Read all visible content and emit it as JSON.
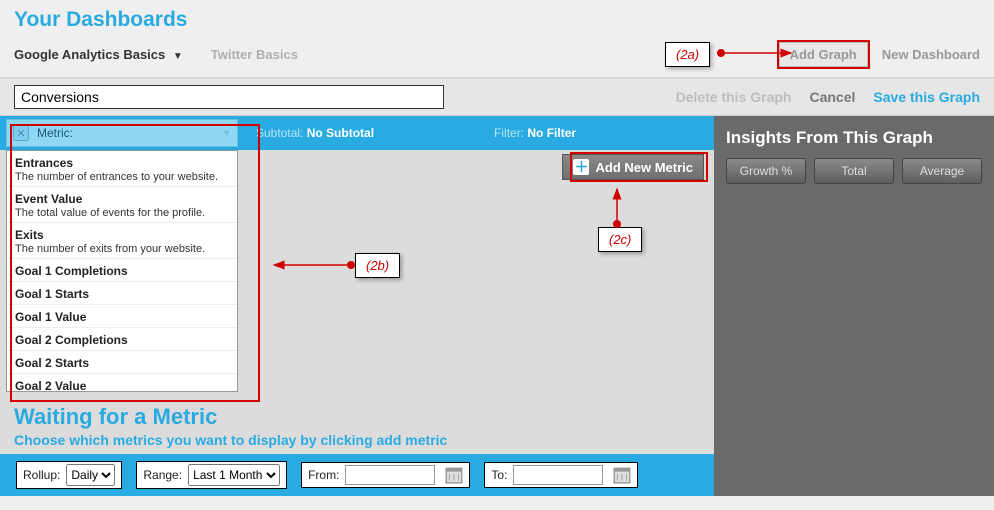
{
  "colors": {
    "accent": "#29abe2",
    "highlight": "#d00000",
    "panel": "#6a6a6a"
  },
  "header": {
    "title": "Your Dashboards"
  },
  "tabs": {
    "active": {
      "label": "Google Analytics Basics"
    },
    "inactive": {
      "label": "Twitter Basics"
    },
    "add_graph": "Add Graph",
    "new_dashboard": "New Dashboard"
  },
  "toolbar": {
    "graph_name": "Conversions",
    "delete": "Delete this Graph",
    "cancel": "Cancel",
    "save": "Save this Graph"
  },
  "bluebar": {
    "metric_label": "Metric:",
    "subtotal_label": "Subtotal:",
    "subtotal_value": "No Subtotal",
    "filter_label": "Filter:",
    "filter_value": "No Filter"
  },
  "metrics": [
    {
      "title": "Entrances",
      "desc": "The number of entrances to your website."
    },
    {
      "title": "Event Value",
      "desc": "The total value of events for the profile."
    },
    {
      "title": "Exits",
      "desc": "The number of exits from your website."
    },
    {
      "title": "Goal 1 Completions",
      "desc": ""
    },
    {
      "title": "Goal 1 Starts",
      "desc": ""
    },
    {
      "title": "Goal 1 Value",
      "desc": ""
    },
    {
      "title": "Goal 2 Completions",
      "desc": ""
    },
    {
      "title": "Goal 2 Starts",
      "desc": ""
    },
    {
      "title": "Goal 2 Value",
      "desc": ""
    }
  ],
  "add_metric_button": "Add New Metric",
  "waiting": {
    "title": "Waiting for a Metric",
    "subtitle": "Choose which metrics you want to display by clicking add metric"
  },
  "controls": {
    "rollup_label": "Rollup:",
    "rollup_value": "Daily",
    "range_label": "Range:",
    "range_value": "Last 1 Month",
    "from_label": "From:",
    "to_label": "To:"
  },
  "insights": {
    "title": "Insights From This Graph",
    "buttons": [
      "Growth %",
      "Total",
      "Average"
    ]
  },
  "callouts": {
    "a": "(2a)",
    "b": "(2b)",
    "c": "(2c)"
  }
}
